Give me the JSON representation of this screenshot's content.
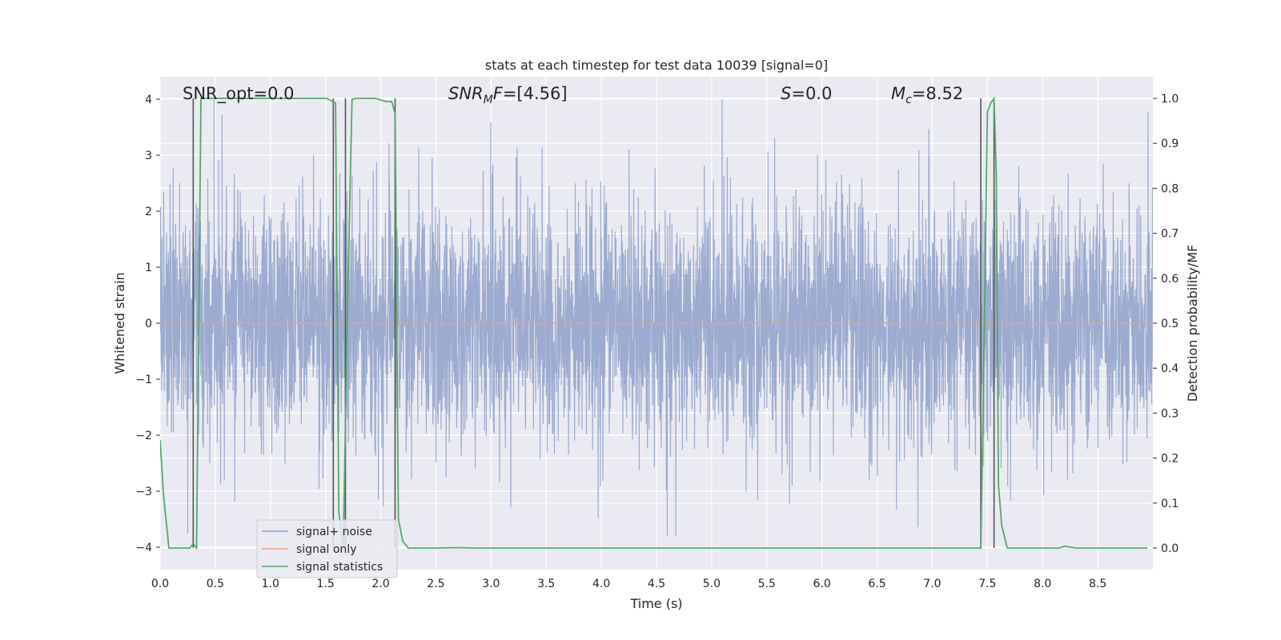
{
  "chart_data": {
    "type": "line",
    "title": "stats at each timestep for test data 10039 [signal=0]",
    "xlabel": "Time (s)",
    "ylabel": "Whitened strain",
    "ylabel_right": "Detection probability/MF",
    "xlim": [
      0.0,
      9.0
    ],
    "ylim": [
      -4.4,
      4.4
    ],
    "ylim_right": [
      -0.048,
      1.048
    ],
    "xticks": [
      "0.0",
      "0.5",
      "1.0",
      "1.5",
      "2.0",
      "2.5",
      "3.0",
      "3.5",
      "4.0",
      "4.5",
      "5.0",
      "5.5",
      "6.0",
      "6.5",
      "7.0",
      "7.5",
      "8.0",
      "8.5"
    ],
    "yticks": [
      "−4",
      "−3",
      "−2",
      "−1",
      "0",
      "1",
      "2",
      "3",
      "4"
    ],
    "yticks_right": [
      "0.0",
      "0.1",
      "0.2",
      "0.3",
      "0.4",
      "0.5",
      "0.6",
      "0.7",
      "0.8",
      "0.9",
      "1.0"
    ],
    "grid": true,
    "legend_position": "lower-left",
    "annotations": {
      "snr_opt": "SNR_opt=0.0",
      "snr_mf": "=[4.56]",
      "s_value": "=0.0",
      "mc_value": "=8.52"
    },
    "vertical_markers": [
      0.3,
      1.57,
      1.68,
      2.13,
      7.44,
      7.56
    ],
    "series": [
      {
        "name": "signal+ noise",
        "color": "#8da0cb",
        "description": "whitened noise samples, roughly Gaussian, range about -3.8 to 4.0",
        "seed": 10039,
        "n_samples": 4500
      },
      {
        "name": "signal only",
        "color": "#e9a07f",
        "x": [
          0.0,
          9.0
        ],
        "y": [
          0.0,
          0.0
        ]
      },
      {
        "name": "signal statistics",
        "color": "#55a868",
        "axis": "right",
        "x": [
          0.0,
          0.03,
          0.08,
          0.2,
          0.27,
          0.3,
          0.33,
          0.37,
          0.5,
          1.0,
          1.51,
          1.55,
          1.59,
          1.62,
          1.66,
          1.7,
          1.74,
          1.78,
          1.9,
          1.95,
          2.05,
          2.1,
          2.13,
          2.16,
          2.2,
          2.25,
          2.5,
          2.7,
          2.85,
          5.0,
          7.0,
          7.44,
          7.47,
          7.5,
          7.53,
          7.56,
          7.58,
          7.6,
          7.63,
          7.68,
          8.0,
          8.15,
          8.2,
          8.3,
          8.5,
          8.95
        ],
        "y": [
          0.24,
          0.12,
          0.0,
          0.0,
          0.0,
          0.01,
          0.0,
          1.0,
          1.0,
          1.0,
          1.0,
          0.995,
          0.99,
          0.08,
          0.0,
          0.55,
          0.998,
          1.0,
          1.0,
          1.0,
          0.993,
          0.993,
          0.965,
          0.065,
          0.015,
          0.0,
          0.0,
          0.001,
          0.0,
          0.0,
          0.0,
          0.0,
          0.45,
          0.97,
          0.99,
          1.0,
          0.83,
          0.14,
          0.05,
          0.0,
          0.0,
          0.0,
          0.004,
          0.0,
          0.0,
          0.0
        ]
      }
    ]
  },
  "legend": {
    "items": [
      {
        "label": "signal+ noise",
        "color": "#8da0cb"
      },
      {
        "label": "signal only",
        "color": "#e9a07f"
      },
      {
        "label": "signal statistics",
        "color": "#55a868"
      }
    ]
  }
}
